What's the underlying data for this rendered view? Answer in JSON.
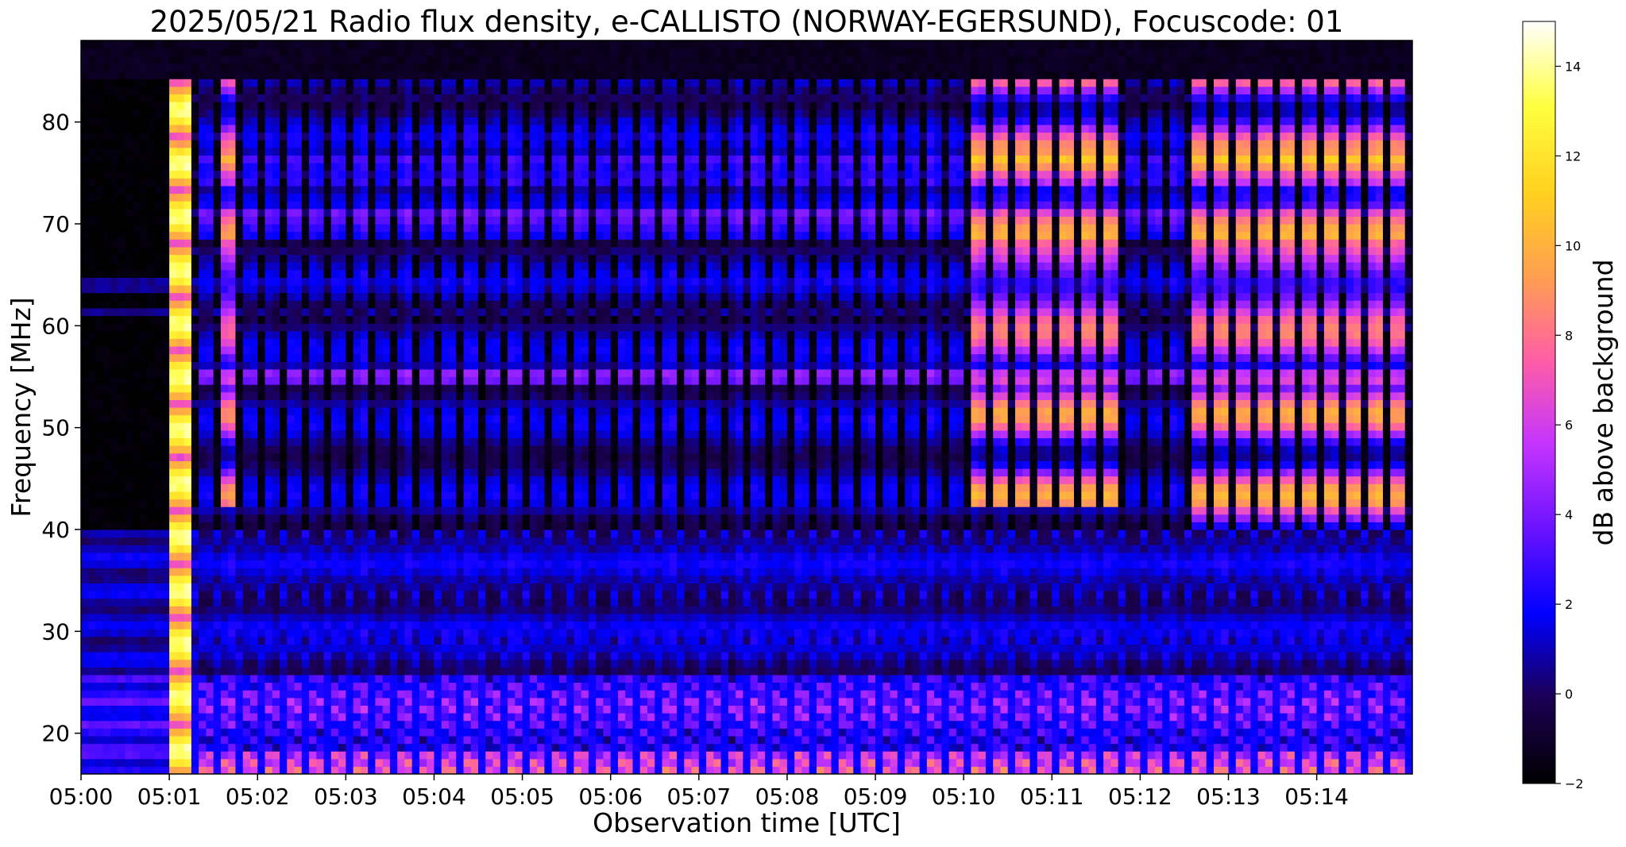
{
  "chart_data": {
    "type": "heatmap",
    "title": "2025/05/21  Radio flux density, e-CALLISTO (NORWAY-EGERSUND), Focuscode: 01",
    "xlabel": "Observation time [UTC]",
    "ylabel": "Frequency [MHz]",
    "xlim": [
      "05:00:00",
      "05:15:05"
    ],
    "ylim": [
      16,
      88
    ],
    "x_ticks": [
      "05:00",
      "05:01",
      "05:02",
      "05:03",
      "05:04",
      "05:05",
      "05:06",
      "05:07",
      "05:08",
      "05:09",
      "05:10",
      "05:11",
      "05:12",
      "05:13",
      "05:14"
    ],
    "y_ticks": [
      20,
      30,
      40,
      50,
      60,
      70,
      80
    ],
    "colorbar": {
      "label": "dB above background",
      "range": [
        -2,
        15
      ],
      "ticks": [
        -2,
        0,
        2,
        4,
        6,
        8,
        10,
        12,
        14
      ],
      "colormap": [
        "#000000",
        "#1b0053",
        "#0000ff",
        "#6a12ff",
        "#c434ff",
        "#ff5ea6",
        "#ffa04f",
        "#ffd21f",
        "#ffff40",
        "#ffffff"
      ]
    },
    "grid": false,
    "bursts": [
      {
        "start": "05:01:00",
        "end": "05:01:15",
        "peak_db": 15,
        "lo_mhz": 16,
        "hi_mhz": 84
      },
      {
        "start": "05:01:30",
        "end": "05:01:45",
        "peak_db": 10,
        "lo_mhz": 42,
        "hi_mhz": 84
      },
      {
        "start": "05:10:00",
        "end": "05:11:45",
        "peak_db": 11,
        "lo_mhz": 42,
        "hi_mhz": 84
      },
      {
        "start": "05:12:30",
        "end": "05:15:00",
        "peak_db": 11,
        "lo_mhz": 40,
        "hi_mhz": 84
      }
    ]
  }
}
